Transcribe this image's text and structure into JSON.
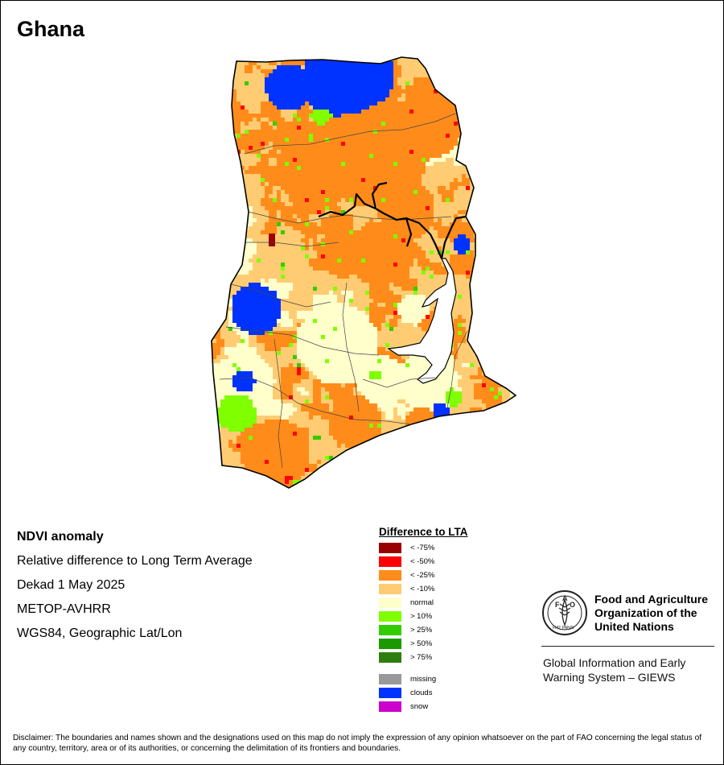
{
  "map": {
    "title": "Ghana"
  },
  "info": {
    "heading": "NDVI anomaly",
    "lines": [
      "Relative difference to Long Term Average",
      "Dekad 1 May 2025",
      "METOP-AVHRR",
      "WGS84, Geographic Lat/Lon"
    ]
  },
  "legend": {
    "title": "Difference to LTA",
    "items": [
      {
        "label": "< -75%",
        "color": "#990000"
      },
      {
        "label": "< -50%",
        "color": "#ff0000"
      },
      {
        "label": "< -25%",
        "color": "#ff8c1a"
      },
      {
        "label": "< -10%",
        "color": "#ffcc73"
      },
      {
        "label": "normal",
        "color": "#ffffcc"
      },
      {
        "label": "> 10%",
        "color": "#80ff00"
      },
      {
        "label": "> 25%",
        "color": "#33cc00"
      },
      {
        "label": "> 50%",
        "color": "#1a9900"
      },
      {
        "label": "> 75%",
        "color": "#2e7d10"
      }
    ],
    "extras": [
      {
        "label": "missing",
        "color": "#999999"
      },
      {
        "label": "clouds",
        "color": "#0033ff"
      },
      {
        "label": "snow",
        "color": "#cc00cc"
      }
    ]
  },
  "organization": {
    "logo_letters": "FAO",
    "logo_motto": "FIAT PANIS",
    "name_lines": [
      "Food and Agriculture",
      "Organization of the",
      "United Nations"
    ],
    "program_lines": [
      "Global Information and Early",
      "Warning System – GIEWS"
    ]
  },
  "disclaimer": "Disclaimer: The boundaries and names shown and the designations used on this map do not imply the expression of any opinion whatsoever on the part of FAO concerning the legal status of any country, territory, area or of its authorities, or concerning the delimitation of its frontiers and boundaries.",
  "colors": {
    "border": "#000000",
    "internal_boundary": "#444444",
    "water": "#ffffff"
  }
}
